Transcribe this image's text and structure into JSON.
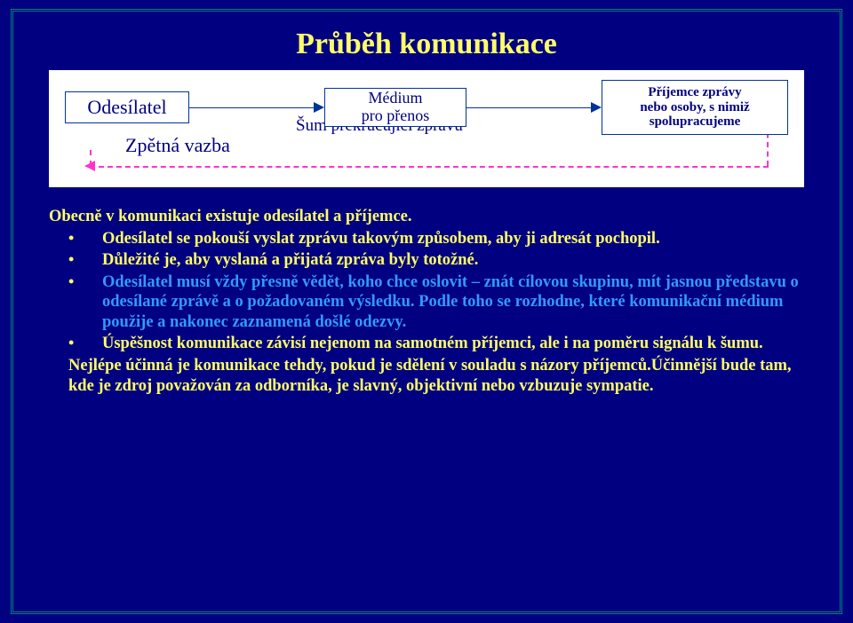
{
  "title": "Průběh komunikace",
  "diagram": {
    "sender": "Odesílatel",
    "medium_line1": "Médium",
    "medium_line2": "pro přenos",
    "receiver_line1": "Příjemce zprávy",
    "receiver_line2": "nebo osoby, s nimiž",
    "receiver_line3": "spolupracujeme",
    "noise": "Šum překrucující zprávu",
    "feedback": "Zpětná vazba",
    "colors": {
      "node_border": "#003399",
      "node_text": "#000080",
      "arrow": "#003399",
      "feedback_dash": "#ff33cc",
      "panel_bg": "#ffffff"
    }
  },
  "lead": "Obecně v komunikaci existuje odesílatel a příjemce.",
  "bullets": [
    "Odesílatel se pokouší vyslat zprávu takovým způsobem, aby ji adresát pochopil.",
    "Důležité je, aby vyslaná a přijatá zpráva byly totožné."
  ],
  "bullet_highlight": {
    "plain": "Odesílatel musí vždy přesně vědět, koho chce oslovit – znát cílovou skupinu, mít jasnou představu o odesílané zprávě a o požadovaném výsledku. Podle toho se rozhodne, které komunikační médium použije  a nakonec zaznamená došlé odezvy."
  },
  "bullet4": "Úspěšnost komunikace závisí nejenom na samotném příjemci, ale i na poměru signálu k šumu.",
  "final": "Nejlépe účinná je komunikace tehdy, pokud je sdělení v souladu s názory příjemců.Účinnější bude tam, kde je zdroj považován za odborníka, je slavný, objektivní nebo  vzbuzuje sympatie.",
  "colors": {
    "background": "#000080",
    "frame_border": "#008080",
    "title": "#ffff66",
    "body": "#ffff66",
    "highlight": "#3399ff"
  },
  "fonts": {
    "title_size_pt": 26,
    "body_size_pt": 14,
    "diagram_size_pt": 14,
    "family": "Times New Roman"
  }
}
